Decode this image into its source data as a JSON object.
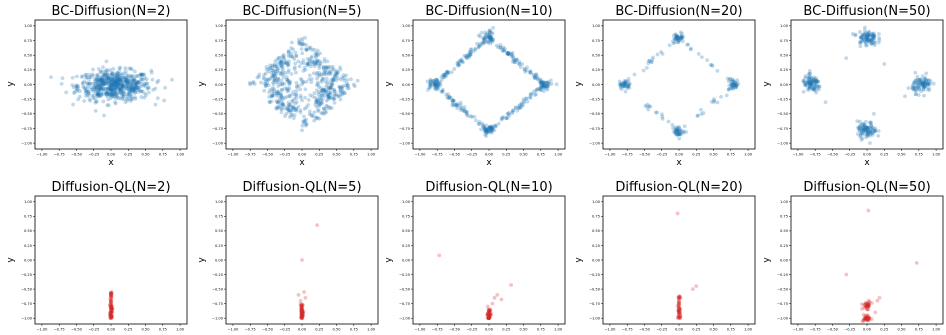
{
  "panel_titles": {
    "row1": [
      "BC-Diffusion(N=2)",
      "BC-Diffusion(N=5)",
      "BC-Diffusion(N=10)",
      "BC-Diffusion(N=20)",
      "BC-Diffusion(N=50)"
    ],
    "row2": [
      "Diffusion-QL(N=2)",
      "Diffusion-QL(N=5)",
      "Diffusion-QL(N=10)",
      "Diffusion-QL(N=20)",
      "Diffusion-QL(N=50)"
    ]
  },
  "axis_labels": {
    "x": "x",
    "y": "y"
  },
  "tick_labels": {
    "x": [
      "−1.00",
      "−0.75",
      "−0.50",
      "−0.25",
      "0.00",
      "0.25",
      "0.50",
      "0.75",
      "1.00"
    ],
    "y": [
      "1.00",
      "0.75",
      "0.50",
      "0.25",
      "0.00",
      "−0.25",
      "−0.50",
      "−0.75",
      "−1.00"
    ]
  },
  "colors": {
    "bc": "#1f77b4",
    "ql": "#d62728"
  },
  "chart_data": [
    {
      "type": "scatter",
      "title": "BC-Diffusion(N=2)",
      "xlabel": "x",
      "ylabel": "y",
      "xlim": [
        -1.1,
        1.1
      ],
      "ylim": [
        -1.1,
        1.1
      ],
      "grid": false,
      "color": "#1f77b4",
      "point_groups": [
        {
          "shape": "ellipse",
          "center": [
            0.05,
            -0.02
          ],
          "spread": [
            0.48,
            0.23
          ],
          "n": 600
        }
      ]
    },
    {
      "type": "scatter",
      "title": "BC-Diffusion(N=5)",
      "xlabel": "x",
      "ylabel": "y",
      "xlim": [
        -1.1,
        1.1
      ],
      "ylim": [
        -1.1,
        1.1
      ],
      "grid": false,
      "color": "#1f77b4",
      "point_groups": [
        {
          "shape": "diamond_filled",
          "radius": 0.78,
          "n": 550
        },
        {
          "shape": "points",
          "x": [
            0.0,
            0.0,
            0.0,
            -0.75,
            0.75
          ],
          "y": [
            0.78,
            0.74,
            -0.78,
            0.0,
            0.0
          ]
        }
      ]
    },
    {
      "type": "scatter",
      "title": "BC-Diffusion(N=10)",
      "xlabel": "x",
      "ylabel": "y",
      "xlim": [
        -1.1,
        1.1
      ],
      "ylim": [
        -1.1,
        1.1
      ],
      "grid": false,
      "color": "#1f77b4",
      "point_groups": [
        {
          "shape": "diamond_edge",
          "radius": 0.8,
          "n": 260
        },
        {
          "shape": "clusters",
          "centers": [
            [
              0.0,
              0.8
            ],
            [
              0.0,
              -0.78
            ],
            [
              0.8,
              0.0
            ],
            [
              -0.8,
              0.0
            ]
          ],
          "spread": 0.05,
          "n_each": 40
        }
      ]
    },
    {
      "type": "scatter",
      "title": "BC-Diffusion(N=20)",
      "xlabel": "x",
      "ylabel": "y",
      "xlim": [
        -1.1,
        1.1
      ],
      "ylim": [
        -1.1,
        1.1
      ],
      "grid": false,
      "color": "#1f77b4",
      "point_groups": [
        {
          "shape": "diamond_edge",
          "radius": 0.8,
          "n": 70
        },
        {
          "shape": "clusters",
          "centers": [
            [
              0.0,
              0.8
            ],
            [
              0.0,
              -0.8
            ],
            [
              0.8,
              0.0
            ],
            [
              -0.8,
              0.0
            ]
          ],
          "spread": 0.04,
          "n_each": 35
        }
      ]
    },
    {
      "type": "scatter",
      "title": "BC-Diffusion(N=50)",
      "xlabel": "x",
      "ylabel": "y",
      "xlim": [
        -1.1,
        1.1
      ],
      "ylim": [
        -1.1,
        1.1
      ],
      "grid": false,
      "color": "#1f77b4",
      "point_groups": [
        {
          "shape": "clusters",
          "centers": [
            [
              0.0,
              0.8
            ],
            [
              0.0,
              -0.78
            ],
            [
              0.8,
              0.0
            ],
            [
              -0.8,
              0.0
            ]
          ],
          "spread": 0.07,
          "n_each": 90
        },
        {
          "shape": "points",
          "x": [
            0.55,
            -0.6,
            0.25,
            -0.3,
            0.7,
            0.1
          ],
          "y": [
            -0.2,
            -0.3,
            0.35,
            0.45,
            0.2,
            -0.5
          ]
        }
      ]
    },
    {
      "type": "scatter",
      "title": "Diffusion-QL(N=2)",
      "xlabel": "x",
      "ylabel": "y",
      "xlim": [
        -1.1,
        1.1
      ],
      "ylim": [
        -1.1,
        1.1
      ],
      "grid": false,
      "color": "#d62728",
      "point_groups": [
        {
          "shape": "column",
          "x": 0.0,
          "y_range": [
            -1.0,
            -0.55
          ],
          "n": 80
        }
      ]
    },
    {
      "type": "scatter",
      "title": "Diffusion-QL(N=5)",
      "xlabel": "x",
      "ylabel": "y",
      "xlim": [
        -1.1,
        1.1
      ],
      "ylim": [
        -1.1,
        1.1
      ],
      "grid": false,
      "color": "#d62728",
      "point_groups": [
        {
          "shape": "column",
          "x": 0.0,
          "y_range": [
            -1.0,
            -0.75
          ],
          "n": 60
        },
        {
          "shape": "points",
          "x": [
            0.22,
            0.0,
            -0.05,
            0.05,
            -0.02,
            0.03
          ],
          "y": [
            0.6,
            0.0,
            -0.6,
            -0.65,
            -0.7,
            -0.55
          ]
        }
      ]
    },
    {
      "type": "scatter",
      "title": "Diffusion-QL(N=10)",
      "xlabel": "x",
      "ylabel": "y",
      "xlim": [
        -1.1,
        1.1
      ],
      "ylim": [
        -1.1,
        1.1
      ],
      "grid": false,
      "color": "#d62728",
      "point_groups": [
        {
          "shape": "column",
          "x": 0.0,
          "y_range": [
            -1.0,
            -0.85
          ],
          "n": 50
        },
        {
          "shape": "points",
          "x": [
            -0.72,
            0.32,
            0.12,
            0.08,
            0.18,
            -0.02,
            0.05
          ],
          "y": [
            0.08,
            -0.43,
            -0.6,
            -0.65,
            -0.68,
            -0.8,
            -0.75
          ]
        }
      ]
    },
    {
      "type": "scatter",
      "title": "Diffusion-QL(N=20)",
      "xlabel": "x",
      "ylabel": "y",
      "xlim": [
        -1.1,
        1.1
      ],
      "ylim": [
        -1.1,
        1.1
      ],
      "grid": false,
      "color": "#d62728",
      "point_groups": [
        {
          "shape": "column",
          "x": 0.0,
          "y_range": [
            -1.0,
            -0.62
          ],
          "n": 50
        },
        {
          "shape": "points",
          "x": [
            -0.02,
            0.25,
            0.2,
            0.02
          ],
          "y": [
            0.8,
            -0.45,
            -0.5,
            -0.65
          ]
        }
      ]
    },
    {
      "type": "scatter",
      "title": "Diffusion-QL(N=50)",
      "xlabel": "x",
      "ylabel": "y",
      "xlim": [
        -1.1,
        1.1
      ],
      "ylim": [
        -1.1,
        1.1
      ],
      "grid": false,
      "color": "#d62728",
      "point_groups": [
        {
          "shape": "clusters",
          "centers": [
            [
              0.0,
              -1.0
            ],
            [
              0.0,
              -0.78
            ]
          ],
          "spread": 0.03,
          "n_each": 35
        },
        {
          "shape": "points",
          "x": [
            0.02,
            0.72,
            -0.3,
            0.18,
            0.15,
            0.12
          ],
          "y": [
            0.85,
            -0.05,
            -0.25,
            -0.65,
            -0.7,
            -0.9
          ]
        }
      ]
    }
  ]
}
